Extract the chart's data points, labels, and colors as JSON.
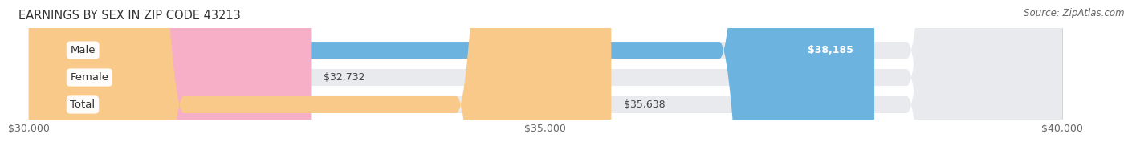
{
  "title": "EARNINGS BY SEX IN ZIP CODE 43213",
  "source": "Source: ZipAtlas.com",
  "categories": [
    "Male",
    "Female",
    "Total"
  ],
  "values": [
    38185,
    32732,
    35638
  ],
  "bar_colors": [
    "#6db3e0",
    "#f7afc8",
    "#f9c98a"
  ],
  "bar_bg_color": "#e8eaed",
  "xmin": 30000,
  "xmax": 40000,
  "xticks": [
    30000,
    35000,
    40000
  ],
  "xtick_labels": [
    "$30,000",
    "$35,000",
    "$40,000"
  ],
  "value_labels": [
    "$38,185",
    "$32,732",
    "$35,638"
  ],
  "value_inside": [
    true,
    false,
    false
  ],
  "title_fontsize": 10.5,
  "tick_fontsize": 9,
  "bar_label_fontsize": 9,
  "cat_fontsize": 9.5,
  "source_fontsize": 8.5,
  "background_color": "#ffffff"
}
